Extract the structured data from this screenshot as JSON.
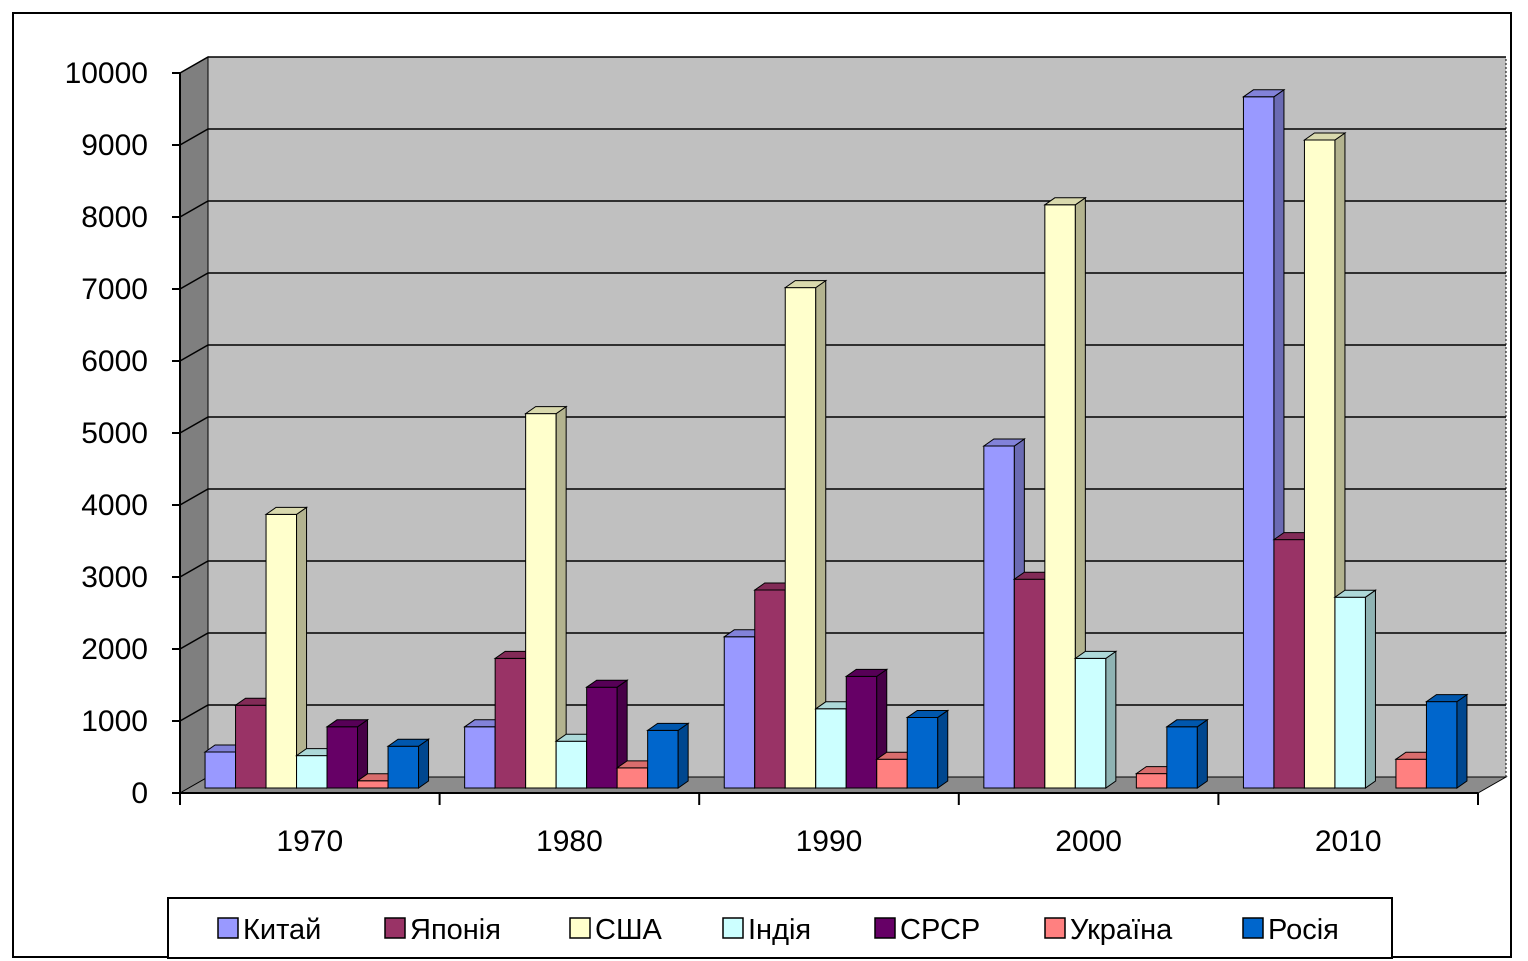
{
  "chart_data": {
    "type": "bar",
    "categories": [
      "1970",
      "1980",
      "1990",
      "2000",
      "2010"
    ],
    "yticks": [
      "0",
      "1000",
      "2000",
      "3000",
      "4000",
      "5000",
      "6000",
      "7000",
      "8000",
      "9000",
      "10000"
    ],
    "ylim": [
      0,
      10000
    ],
    "grid": true,
    "legend_position": "bottom",
    "series": [
      {
        "name": "Китай",
        "color": "#9999ff",
        "values": [
          500,
          850,
          2100,
          4750,
          9600
        ]
      },
      {
        "name": "Японія",
        "color": "#993366",
        "values": [
          1150,
          1800,
          2750,
          2900,
          3450
        ]
      },
      {
        "name": "США",
        "color": "#ffffcc",
        "values": [
          3800,
          5200,
          6950,
          8100,
          9000
        ]
      },
      {
        "name": "Індія",
        "color": "#ccffff",
        "values": [
          450,
          650,
          1100,
          1800,
          2650
        ]
      },
      {
        "name": "СРСР",
        "color": "#660066",
        "values": [
          850,
          1400,
          1550,
          0,
          0
        ]
      },
      {
        "name": "Україна",
        "color": "#ff8080",
        "values": [
          100,
          280,
          400,
          200,
          400
        ]
      },
      {
        "name": "Росія",
        "color": "#0066cc",
        "values": [
          580,
          800,
          980,
          850,
          1200
        ]
      }
    ]
  }
}
